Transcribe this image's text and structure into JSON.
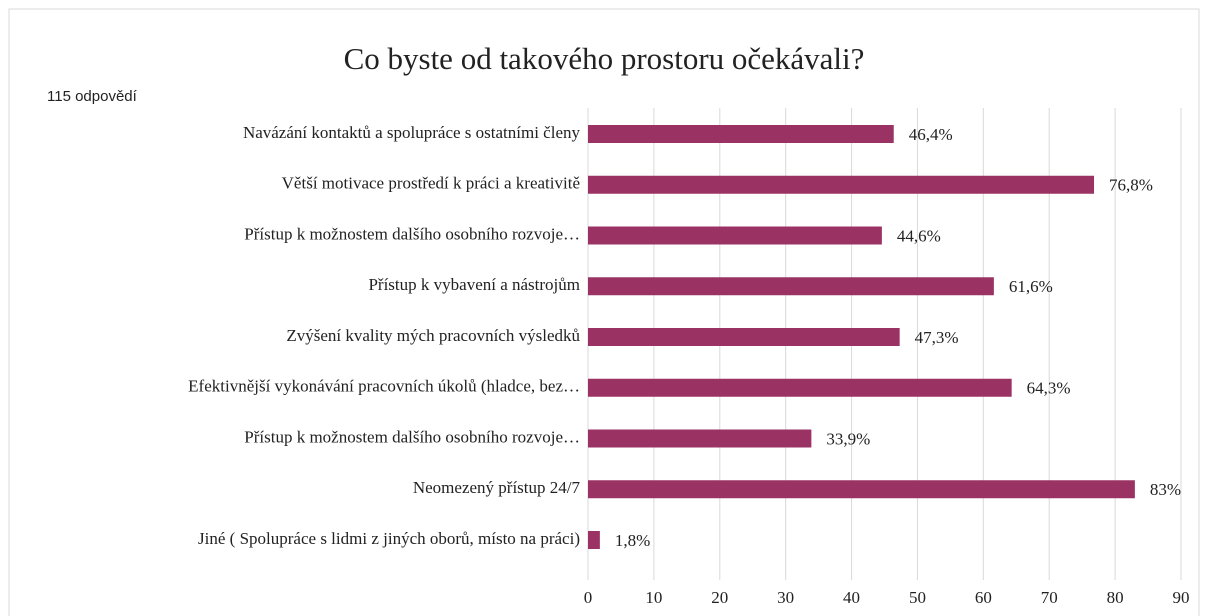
{
  "chart_data": {
    "type": "hbar",
    "title": "Co byste od takového prostoru očekávali?",
    "subtitle": "115 odpovědí",
    "categories": [
      "Navázání kontaktů a spolupráce s ostatními členy",
      "Větší motivace prostředí k práci a kreativitě",
      "Přístup k možnostem dalšího osobního rozvoje…",
      "Přístup k vybavení a nástrojům",
      "Zvýšení kvality mých pracovních výsledků",
      "Efektivnější vykonávání pracovních úkolů (hladce, bez…",
      "Přístup k možnostem dalšího osobního rozvoje…",
      "Neomezený přístup 24/7",
      "Jiné ( Spolupráce s lidmi z jiných oborů, místo na práci)"
    ],
    "values": [
      46.4,
      76.8,
      44.6,
      61.6,
      47.3,
      64.3,
      33.9,
      83,
      1.8
    ],
    "value_labels": [
      "46,4%",
      "76,8%",
      "44,6%",
      "61,6%",
      "47,3%",
      "64,3%",
      "33,9%",
      "83%",
      "1,8%"
    ],
    "color": "#9b3264",
    "xlim": [
      0,
      90
    ],
    "xticks": [
      0,
      10,
      20,
      30,
      40,
      50,
      60,
      70,
      80,
      90
    ],
    "grid": true
  }
}
